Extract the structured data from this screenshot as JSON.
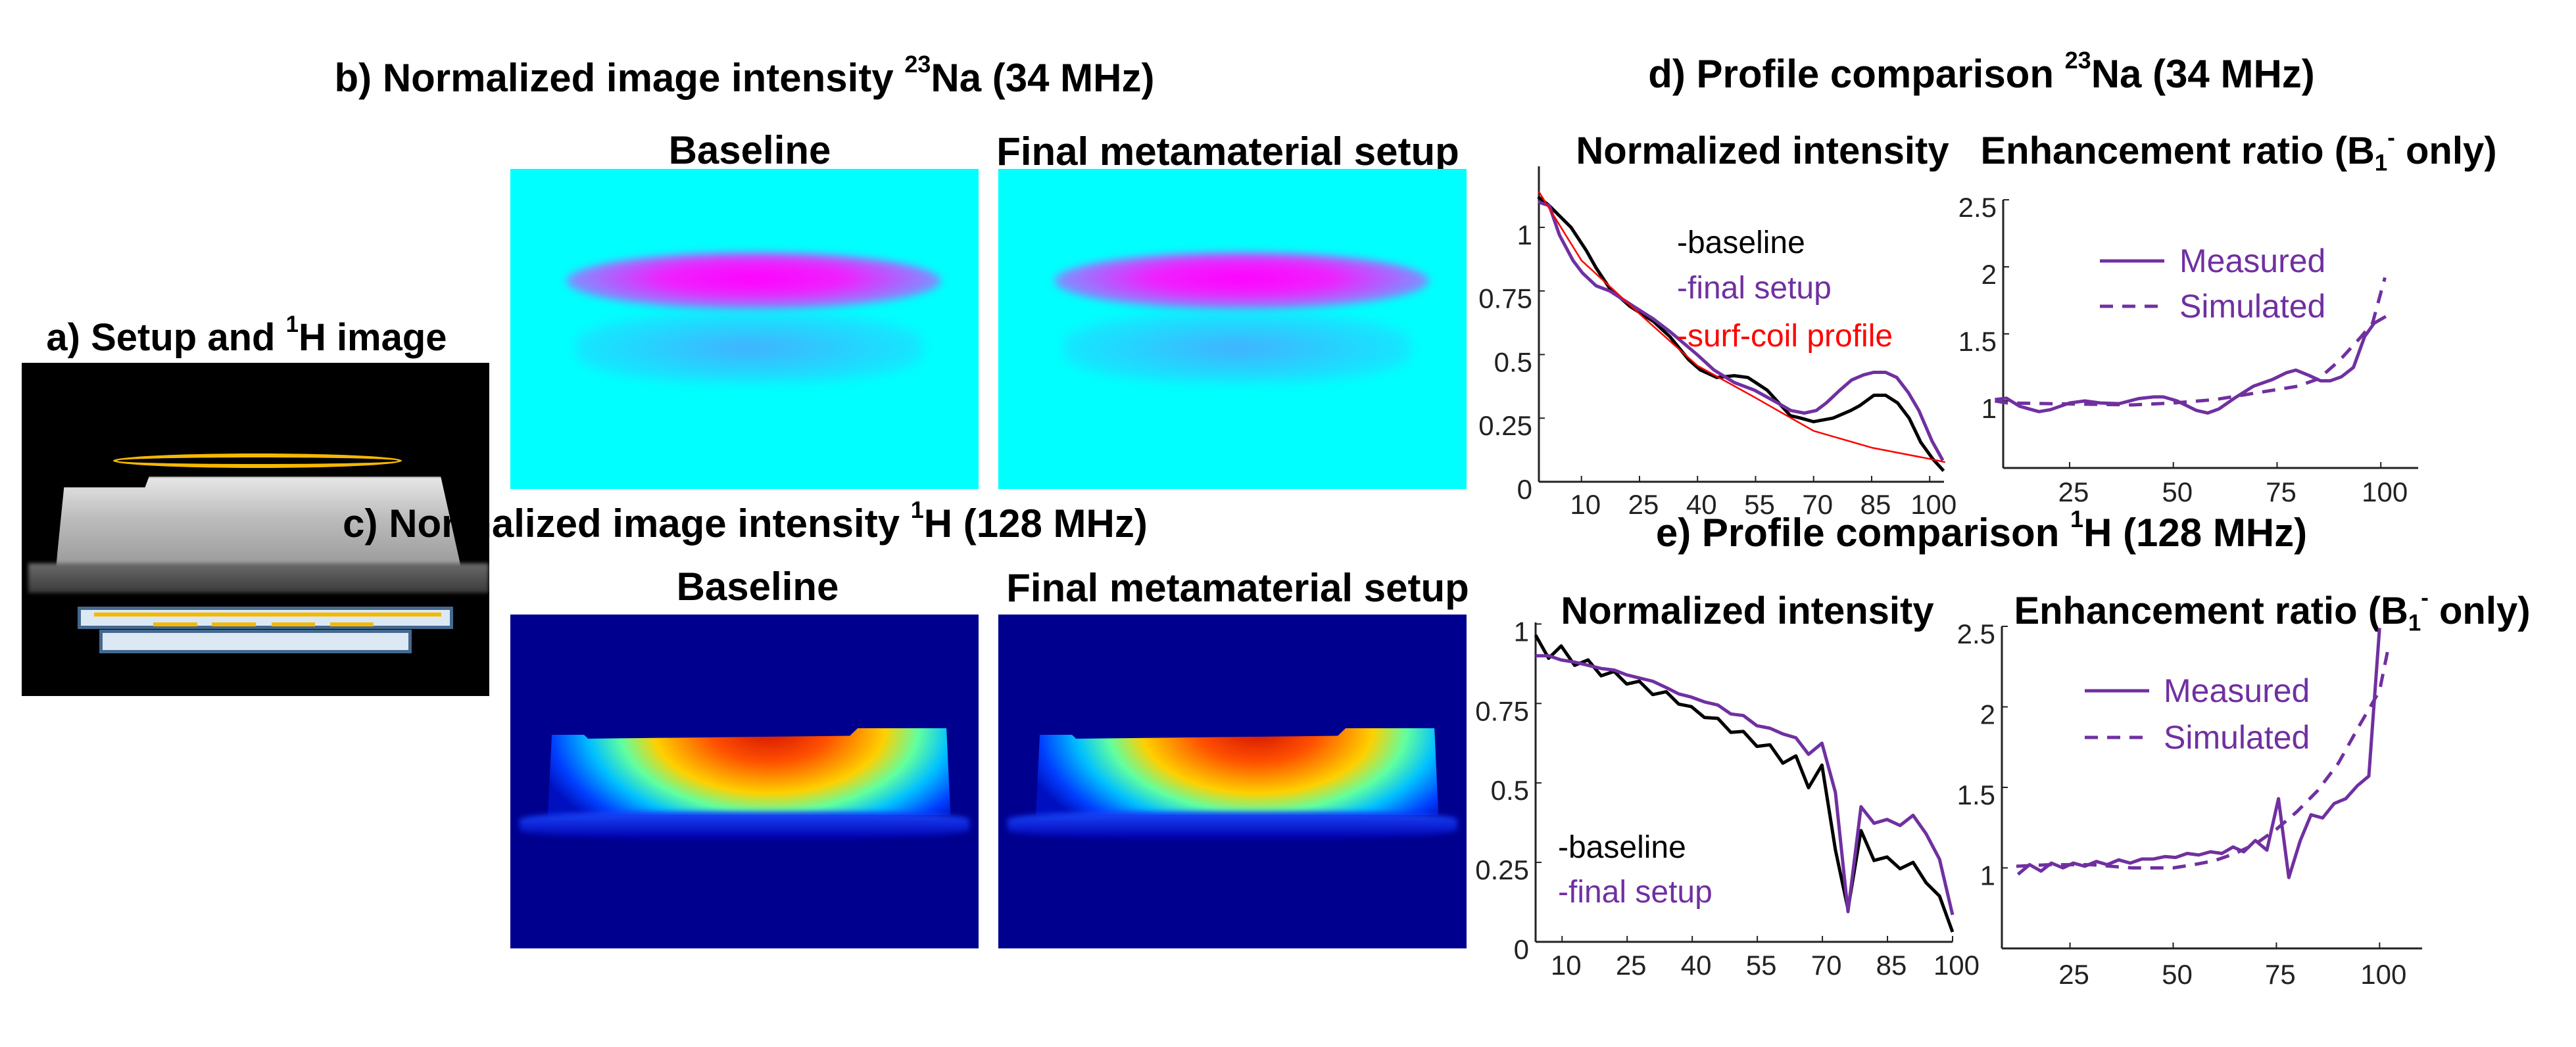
{
  "panel_a": {
    "title_prefix": "a) Setup and ",
    "title_sup": "1",
    "title_suffix": "H image",
    "colors": {
      "coil": "#f5b800",
      "slab_fill": "#dde8f5",
      "slab_border": "#44698f"
    }
  },
  "panel_b": {
    "title_prefix": "b) Normalized image intensity ",
    "title_sup": "23",
    "title_suffix": "Na (34 MHz)",
    "labels": [
      "Baseline",
      "Final metamaterial setup"
    ]
  },
  "panel_c": {
    "title_prefix": "c) Normalized image intensity ",
    "title_sup": "1",
    "title_suffix": "H (128 MHz)",
    "labels": [
      "Baseline",
      "Final metamaterial setup"
    ]
  },
  "panel_d": {
    "title_prefix": "d) Profile comparison ",
    "title_sup": "23",
    "title_suffix": "Na (34 MHz)"
  },
  "panel_e": {
    "title_prefix": "e) Profile comparison ",
    "title_sup": "1",
    "title_suffix": "H (128 MHz)"
  },
  "subtitles": {
    "intensity": "Normalized intensity",
    "ratio_prefix": "Enhancement ratio (B",
    "ratio_sub": "1",
    "ratio_sup": "-",
    "ratio_suffix": " only)"
  },
  "colors": {
    "baseline": "#000000",
    "final": "#7030a0",
    "surf": "#ff0000",
    "axis": "#222222"
  },
  "chart_data": [
    {
      "id": "d-intensity",
      "type": "line",
      "title": "Normalized intensity",
      "xlim": [
        -1,
        103.7
      ],
      "ylim": [
        0,
        1.24
      ],
      "x_ticks": [
        10,
        25,
        40,
        55,
        70,
        85,
        100
      ],
      "y_ticks": [
        0,
        0.25,
        0.5,
        0.75,
        1
      ],
      "y_tick_labels": [
        "0",
        "0.25",
        "0.5",
        "0.75",
        "1"
      ],
      "legend": "top-right",
      "series": [
        {
          "name": "-baseline",
          "color": "#000000",
          "dash": false,
          "x": [
            -1.2,
            1.7,
            7.3,
            11.2,
            13.8,
            17.3,
            22.5,
            28.6,
            32.9,
            37.7,
            40.7,
            45,
            49.5,
            53,
            58,
            64,
            66.7,
            70,
            75,
            79.6,
            82,
            85.6,
            88.6,
            91.7,
            94.7,
            97.7,
            100.8,
            103.6
          ],
          "y": [
            1.12,
            1.085,
            1.0,
            0.91,
            0.84,
            0.76,
            0.69,
            0.63,
            0.57,
            0.48,
            0.44,
            0.41,
            0.417,
            0.41,
            0.36,
            0.26,
            0.25,
            0.236,
            0.25,
            0.28,
            0.3,
            0.34,
            0.34,
            0.31,
            0.25,
            0.155,
            0.09,
            0.043
          ]
        },
        {
          "name": "-final setup",
          "color": "#7030a0",
          "dash": false,
          "x": [
            -1.2,
            1.7,
            4.3,
            7.8,
            10.3,
            13.8,
            17.3,
            23.4,
            28.6,
            32.9,
            39.9,
            44.2,
            49.5,
            54.7,
            60.7,
            64.1,
            67.6,
            70.7,
            73.3,
            76.8,
            79.8,
            82.9,
            85.5,
            88.6,
            91.5,
            94.5,
            97.2,
            100.6,
            103.4
          ],
          "y": [
            1.1,
            1.085,
            0.97,
            0.87,
            0.82,
            0.77,
            0.75,
            0.69,
            0.64,
            0.59,
            0.5,
            0.44,
            0.39,
            0.36,
            0.31,
            0.28,
            0.27,
            0.28,
            0.31,
            0.36,
            0.4,
            0.42,
            0.43,
            0.43,
            0.41,
            0.35,
            0.28,
            0.16,
            0.084
          ]
        },
        {
          "name": "-surf-coil profile",
          "color": "#ff0000",
          "dash": false,
          "x": [
            -1,
            10,
            25,
            40,
            55,
            70,
            85,
            100,
            104
          ],
          "y": [
            1.14,
            0.87,
            0.66,
            0.456,
            0.33,
            0.2,
            0.134,
            0.09,
            0.077
          ]
        }
      ]
    },
    {
      "id": "d-ratio",
      "type": "line",
      "title": "Enhancement ratio (B1- only)",
      "xlim": [
        9,
        109
      ],
      "ylim": [
        0.5,
        2.5
      ],
      "x_ticks": [
        25,
        50,
        75,
        100
      ],
      "y_ticks": [
        1,
        1.5,
        2,
        2.5
      ],
      "y_tick_labels": [
        "1",
        "1.5",
        "2",
        "2.5"
      ],
      "legend": "top-center",
      "series": [
        {
          "name": "Measured",
          "color": "#7030a0",
          "dash": false,
          "x": [
            7,
            9.8,
            13,
            17.6,
            20.4,
            25,
            28.7,
            32.4,
            37,
            41.6,
            45.3,
            47.6,
            50.9,
            55.5,
            58.3,
            61,
            64.7,
            69.3,
            73.9,
            77.2,
            79.5,
            82.7,
            85.5,
            87.8,
            90.5,
            93.4,
            96.1,
            98.4,
            101.2
          ],
          "y": [
            1.01,
            1.02,
            0.96,
            0.92,
            0.935,
            0.985,
            1.0,
            0.985,
            0.98,
            1.017,
            1.03,
            1.03,
            1.0,
            0.93,
            0.91,
            0.94,
            1.02,
            1.11,
            1.16,
            1.21,
            1.23,
            1.19,
            1.15,
            1.15,
            1.18,
            1.25,
            1.48,
            1.58,
            1.63
          ]
        },
        {
          "name": "Simulated",
          "color": "#7030a0",
          "dash": true,
          "x": [
            7,
            10,
            20,
            30,
            40,
            50,
            60,
            70,
            80,
            85,
            90,
            95,
            98,
            101
          ],
          "y": [
            1.0,
            0.985,
            0.98,
            0.975,
            0.97,
            0.985,
            1.01,
            1.06,
            1.11,
            1.165,
            1.3,
            1.47,
            1.58,
            1.92
          ]
        }
      ]
    },
    {
      "id": "e-intensity",
      "type": "line",
      "title": "Normalized intensity",
      "xlim": [
        3.9,
        100
      ],
      "ylim": [
        0,
        1.005
      ],
      "x_ticks": [
        10,
        25,
        40,
        55,
        70,
        85,
        100
      ],
      "y_ticks": [
        0,
        0.25,
        0.5,
        0.75,
        1
      ],
      "y_tick_labels": [
        "0",
        "0.25",
        "0.5",
        "0.75",
        "1"
      ],
      "legend": "bottom-left",
      "series": [
        {
          "name": "-baseline",
          "color": "#000000",
          "dash": false,
          "x": [
            3.9,
            6.9,
            9.8,
            12.9,
            16,
            19,
            22,
            24.9,
            27.8,
            30.9,
            34,
            36.9,
            39.8,
            42.8,
            45.9,
            48.9,
            51.8,
            54.9,
            57.9,
            60.9,
            63.9,
            66.8,
            69.9,
            73,
            75.9,
            78.9,
            81.9,
            84.9,
            87.9,
            90.9,
            93.9,
            97,
            100
          ],
          "y": [
            0.965,
            0.892,
            0.931,
            0.87,
            0.887,
            0.837,
            0.851,
            0.811,
            0.82,
            0.778,
            0.787,
            0.748,
            0.74,
            0.706,
            0.703,
            0.659,
            0.662,
            0.615,
            0.62,
            0.562,
            0.585,
            0.485,
            0.556,
            0.289,
            0.103,
            0.35,
            0.256,
            0.267,
            0.23,
            0.25,
            0.186,
            0.144,
            0.031
          ]
        },
        {
          "name": "-final setup",
          "color": "#7030a0",
          "dash": false,
          "x": [
            3.9,
            6.9,
            9.8,
            12.9,
            16,
            19,
            22,
            24.9,
            27.8,
            30.9,
            34,
            36.9,
            39.8,
            42.8,
            45.9,
            48.9,
            51.8,
            54.9,
            57.9,
            60.9,
            63.9,
            66.8,
            69.9,
            73,
            75.9,
            78.9,
            81.9,
            84.9,
            87.9,
            90.9,
            93.9,
            97,
            100
          ],
          "y": [
            0.9,
            0.9,
            0.887,
            0.88,
            0.87,
            0.86,
            0.855,
            0.84,
            0.83,
            0.82,
            0.8,
            0.78,
            0.77,
            0.755,
            0.745,
            0.717,
            0.712,
            0.68,
            0.672,
            0.654,
            0.642,
            0.59,
            0.625,
            0.47,
            0.095,
            0.425,
            0.373,
            0.385,
            0.366,
            0.398,
            0.34,
            0.26,
            0.085
          ]
        }
      ]
    },
    {
      "id": "e-ratio",
      "type": "line",
      "title": "Enhancement ratio (B1- only)",
      "xlim": [
        8.5,
        110.3
      ],
      "ylim": [
        0.5,
        2.5
      ],
      "x_ticks": [
        25,
        50,
        75,
        100
      ],
      "y_ticks": [
        1,
        1.5,
        2,
        2.5
      ],
      "y_tick_labels": [
        "1",
        "1.5",
        "2",
        "2.5"
      ],
      "legend": "top-center",
      "series": [
        {
          "name": "Measured",
          "color": "#7030a0",
          "dash": false,
          "x": [
            12.4,
            15.2,
            18,
            20.5,
            23.3,
            25.8,
            28.6,
            31.4,
            34,
            36.8,
            39.6,
            42.4,
            45.2,
            48,
            50.6,
            53.4,
            56.2,
            59,
            61.8,
            64.5,
            67.1,
            69.9,
            72.7,
            75.5,
            78,
            80.8,
            83.4,
            86.2,
            89,
            91.8,
            94.6,
            97.4,
            100
          ],
          "y": [
            0.96,
            1.02,
            0.98,
            1.03,
            1.0,
            1.03,
            1.01,
            1.04,
            1.02,
            1.05,
            1.03,
            1.055,
            1.055,
            1.07,
            1.065,
            1.09,
            1.08,
            1.1,
            1.09,
            1.13,
            1.1,
            1.17,
            1.11,
            1.43,
            0.94,
            1.17,
            1.33,
            1.31,
            1.4,
            1.43,
            1.51,
            1.57,
            2.49
          ]
        },
        {
          "name": "Simulated",
          "color": "#7030a0",
          "dash": true,
          "x": [
            12,
            20,
            30,
            40,
            50,
            55,
            60,
            65,
            70,
            75,
            80,
            85,
            90,
            95,
            100,
            102.2
          ],
          "y": [
            1.01,
            1.02,
            1.02,
            1.0,
            1.0,
            1.02,
            1.045,
            1.09,
            1.15,
            1.24,
            1.35,
            1.48,
            1.65,
            1.88,
            2.1,
            2.38
          ]
        }
      ]
    }
  ]
}
